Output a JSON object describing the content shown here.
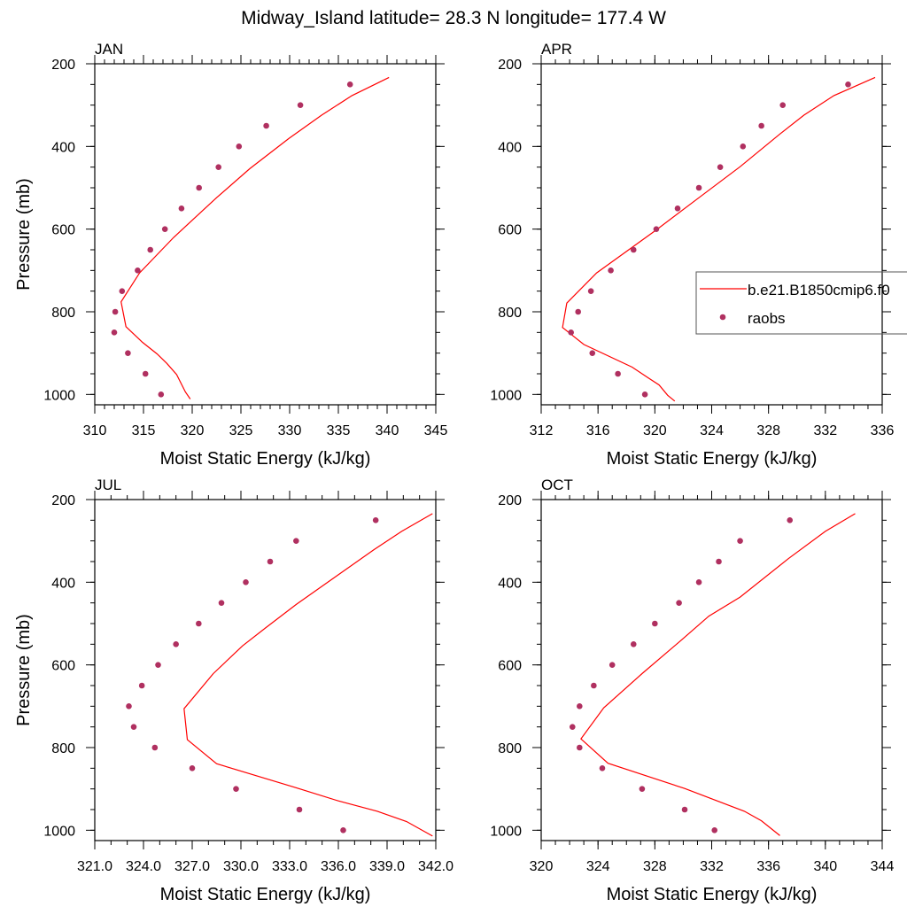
{
  "title": "Midway_Island  latitude= 28.3 N longitude= 177.4 W",
  "colors": {
    "model": "#ff0000",
    "obs": "#b03060",
    "axis": "#000000",
    "legend_border": "#555555"
  },
  "legend": {
    "placement": "right-middle",
    "items": [
      {
        "label": "b.e21.B1850cmip6.f0",
        "marker": "line",
        "series": "model"
      },
      {
        "label": "raobs",
        "marker": "dot",
        "series": "obs"
      }
    ]
  },
  "chart_data": [
    {
      "type": "line",
      "panel_label": "JAN",
      "xlabel": "Moist Static Energy (kJ/kg)",
      "ylabel": "Pressure (mb)",
      "xlim": [
        310,
        345
      ],
      "xticks": [
        "310",
        "315",
        "320",
        "325",
        "330",
        "335",
        "340",
        "345"
      ],
      "xminor": 1,
      "ylim": [
        200,
        1025
      ],
      "y_reversed": true,
      "yticks": [
        "200",
        "400",
        "600",
        "800",
        "1000"
      ],
      "yminor": 50,
      "grid": false,
      "series": [
        {
          "name": "b.e21.B1850cmip6.f0",
          "kind": "line",
          "x": [
            340.2,
            336.4,
            333.3,
            329.9,
            325.9,
            322.5,
            318.1,
            314.6,
            312.7,
            313.2,
            314.9,
            316.4,
            317.4,
            318.4,
            319.3,
            319.8
          ],
          "y": [
            233,
            277,
            324,
            381,
            454,
            524,
            620,
            706,
            776,
            836,
            874,
            902,
            925,
            952,
            994,
            1011
          ]
        },
        {
          "name": "raobs",
          "kind": "scatter",
          "x": [
            336.2,
            331.1,
            327.6,
            324.8,
            322.7,
            320.7,
            318.9,
            317.2,
            315.7,
            314.4,
            312.8,
            312.1,
            312.0,
            313.4,
            315.2,
            316.8
          ],
          "y": [
            250,
            300,
            350,
            400,
            450,
            500,
            550,
            600,
            650,
            700,
            750,
            800,
            850,
            900,
            950,
            1000
          ]
        }
      ]
    },
    {
      "type": "line",
      "panel_label": "APR",
      "xlabel": "Moist Static Energy (kJ/kg)",
      "ylabel": "",
      "xlim": [
        312,
        336
      ],
      "xticks": [
        "312",
        "316",
        "320",
        "324",
        "328",
        "332",
        "336"
      ],
      "xminor": 1,
      "ylim": [
        200,
        1025
      ],
      "y_reversed": true,
      "yticks": [
        "200",
        "400",
        "600",
        "800",
        "1000"
      ],
      "yminor": 50,
      "grid": false,
      "series": [
        {
          "name": "b.e21.B1850cmip6.f0",
          "kind": "line",
          "x": [
            335.5,
            332.6,
            330.5,
            328.8,
            326.0,
            323.1,
            320.1,
            315.9,
            313.8,
            313.5,
            315.0,
            318.4,
            319.5,
            320.3,
            320.9,
            321.4
          ],
          "y": [
            233,
            277,
            324,
            370,
            449,
            524,
            602,
            706,
            779,
            838,
            879,
            934,
            959,
            977,
            1002,
            1016
          ]
        },
        {
          "name": "raobs",
          "kind": "scatter",
          "x": [
            333.6,
            329.0,
            327.5,
            326.2,
            324.6,
            323.1,
            321.6,
            320.1,
            318.5,
            316.9,
            315.5,
            314.6,
            314.1,
            315.6,
            317.4,
            319.3
          ],
          "y": [
            250,
            300,
            350,
            400,
            450,
            500,
            550,
            600,
            650,
            700,
            750,
            800,
            850,
            900,
            950,
            1000
          ]
        }
      ]
    },
    {
      "type": "line",
      "panel_label": "JUL",
      "xlabel": "Moist Static Energy (kJ/kg)",
      "ylabel": "Pressure (mb)",
      "xlim": [
        321,
        342
      ],
      "xticks": [
        "321.0",
        "324.0",
        "327.0",
        "330.0",
        "333.0",
        "336.0",
        "339.0",
        "342.0"
      ],
      "xminor": 1,
      "ylim": [
        200,
        1025
      ],
      "y_reversed": true,
      "yticks": [
        "200",
        "400",
        "600",
        "800",
        "1000"
      ],
      "yminor": 50,
      "grid": false,
      "series": [
        {
          "name": "b.e21.B1850cmip6.f0",
          "kind": "line",
          "x": [
            341.8,
            339.9,
            338.2,
            336.0,
            333.4,
            331.5,
            330.1,
            328.3,
            326.5,
            326.7,
            328.5,
            333.3,
            336.0,
            338.4,
            340.2,
            341.8
          ],
          "y": [
            234,
            277,
            321,
            382,
            454,
            511,
            554,
            621,
            706,
            781,
            839,
            896,
            929,
            954,
            979,
            1014
          ]
        },
        {
          "name": "raobs",
          "kind": "scatter",
          "x": [
            338.3,
            333.4,
            331.8,
            330.3,
            328.8,
            327.4,
            326.0,
            324.9,
            323.9,
            323.1,
            323.4,
            324.7,
            327.0,
            329.7,
            333.6,
            336.3
          ],
          "y": [
            250,
            300,
            350,
            400,
            450,
            500,
            550,
            600,
            650,
            700,
            750,
            800,
            850,
            900,
            950,
            1000
          ]
        }
      ]
    },
    {
      "type": "line",
      "panel_label": "OCT",
      "xlabel": "Moist Static Energy (kJ/kg)",
      "ylabel": "",
      "xlim": [
        320,
        344
      ],
      "xticks": [
        "320",
        "324",
        "328",
        "332",
        "336",
        "340",
        "344"
      ],
      "xminor": 1,
      "ylim": [
        200,
        1025
      ],
      "y_reversed": true,
      "yticks": [
        "200",
        "400",
        "600",
        "800",
        "1000"
      ],
      "yminor": 50,
      "grid": false,
      "series": [
        {
          "name": "b.e21.B1850cmip6.f0",
          "kind": "line",
          "x": [
            342.1,
            340.0,
            337.4,
            334.0,
            331.8,
            329.9,
            327.1,
            324.4,
            322.8,
            324.7,
            330.1,
            334.3,
            335.5,
            336.8
          ],
          "y": [
            234,
            277,
            343,
            436,
            482,
            539,
            621,
            704,
            779,
            838,
            899,
            954,
            977,
            1013
          ]
        },
        {
          "name": "raobs",
          "kind": "scatter",
          "x": [
            337.5,
            334.0,
            332.5,
            331.1,
            329.7,
            328.0,
            326.5,
            325.0,
            323.7,
            322.7,
            322.2,
            322.7,
            324.3,
            327.1,
            330.1,
            332.2
          ],
          "y": [
            250,
            300,
            350,
            400,
            450,
            500,
            550,
            600,
            650,
            700,
            750,
            800,
            850,
            900,
            950,
            1000
          ]
        }
      ]
    }
  ]
}
